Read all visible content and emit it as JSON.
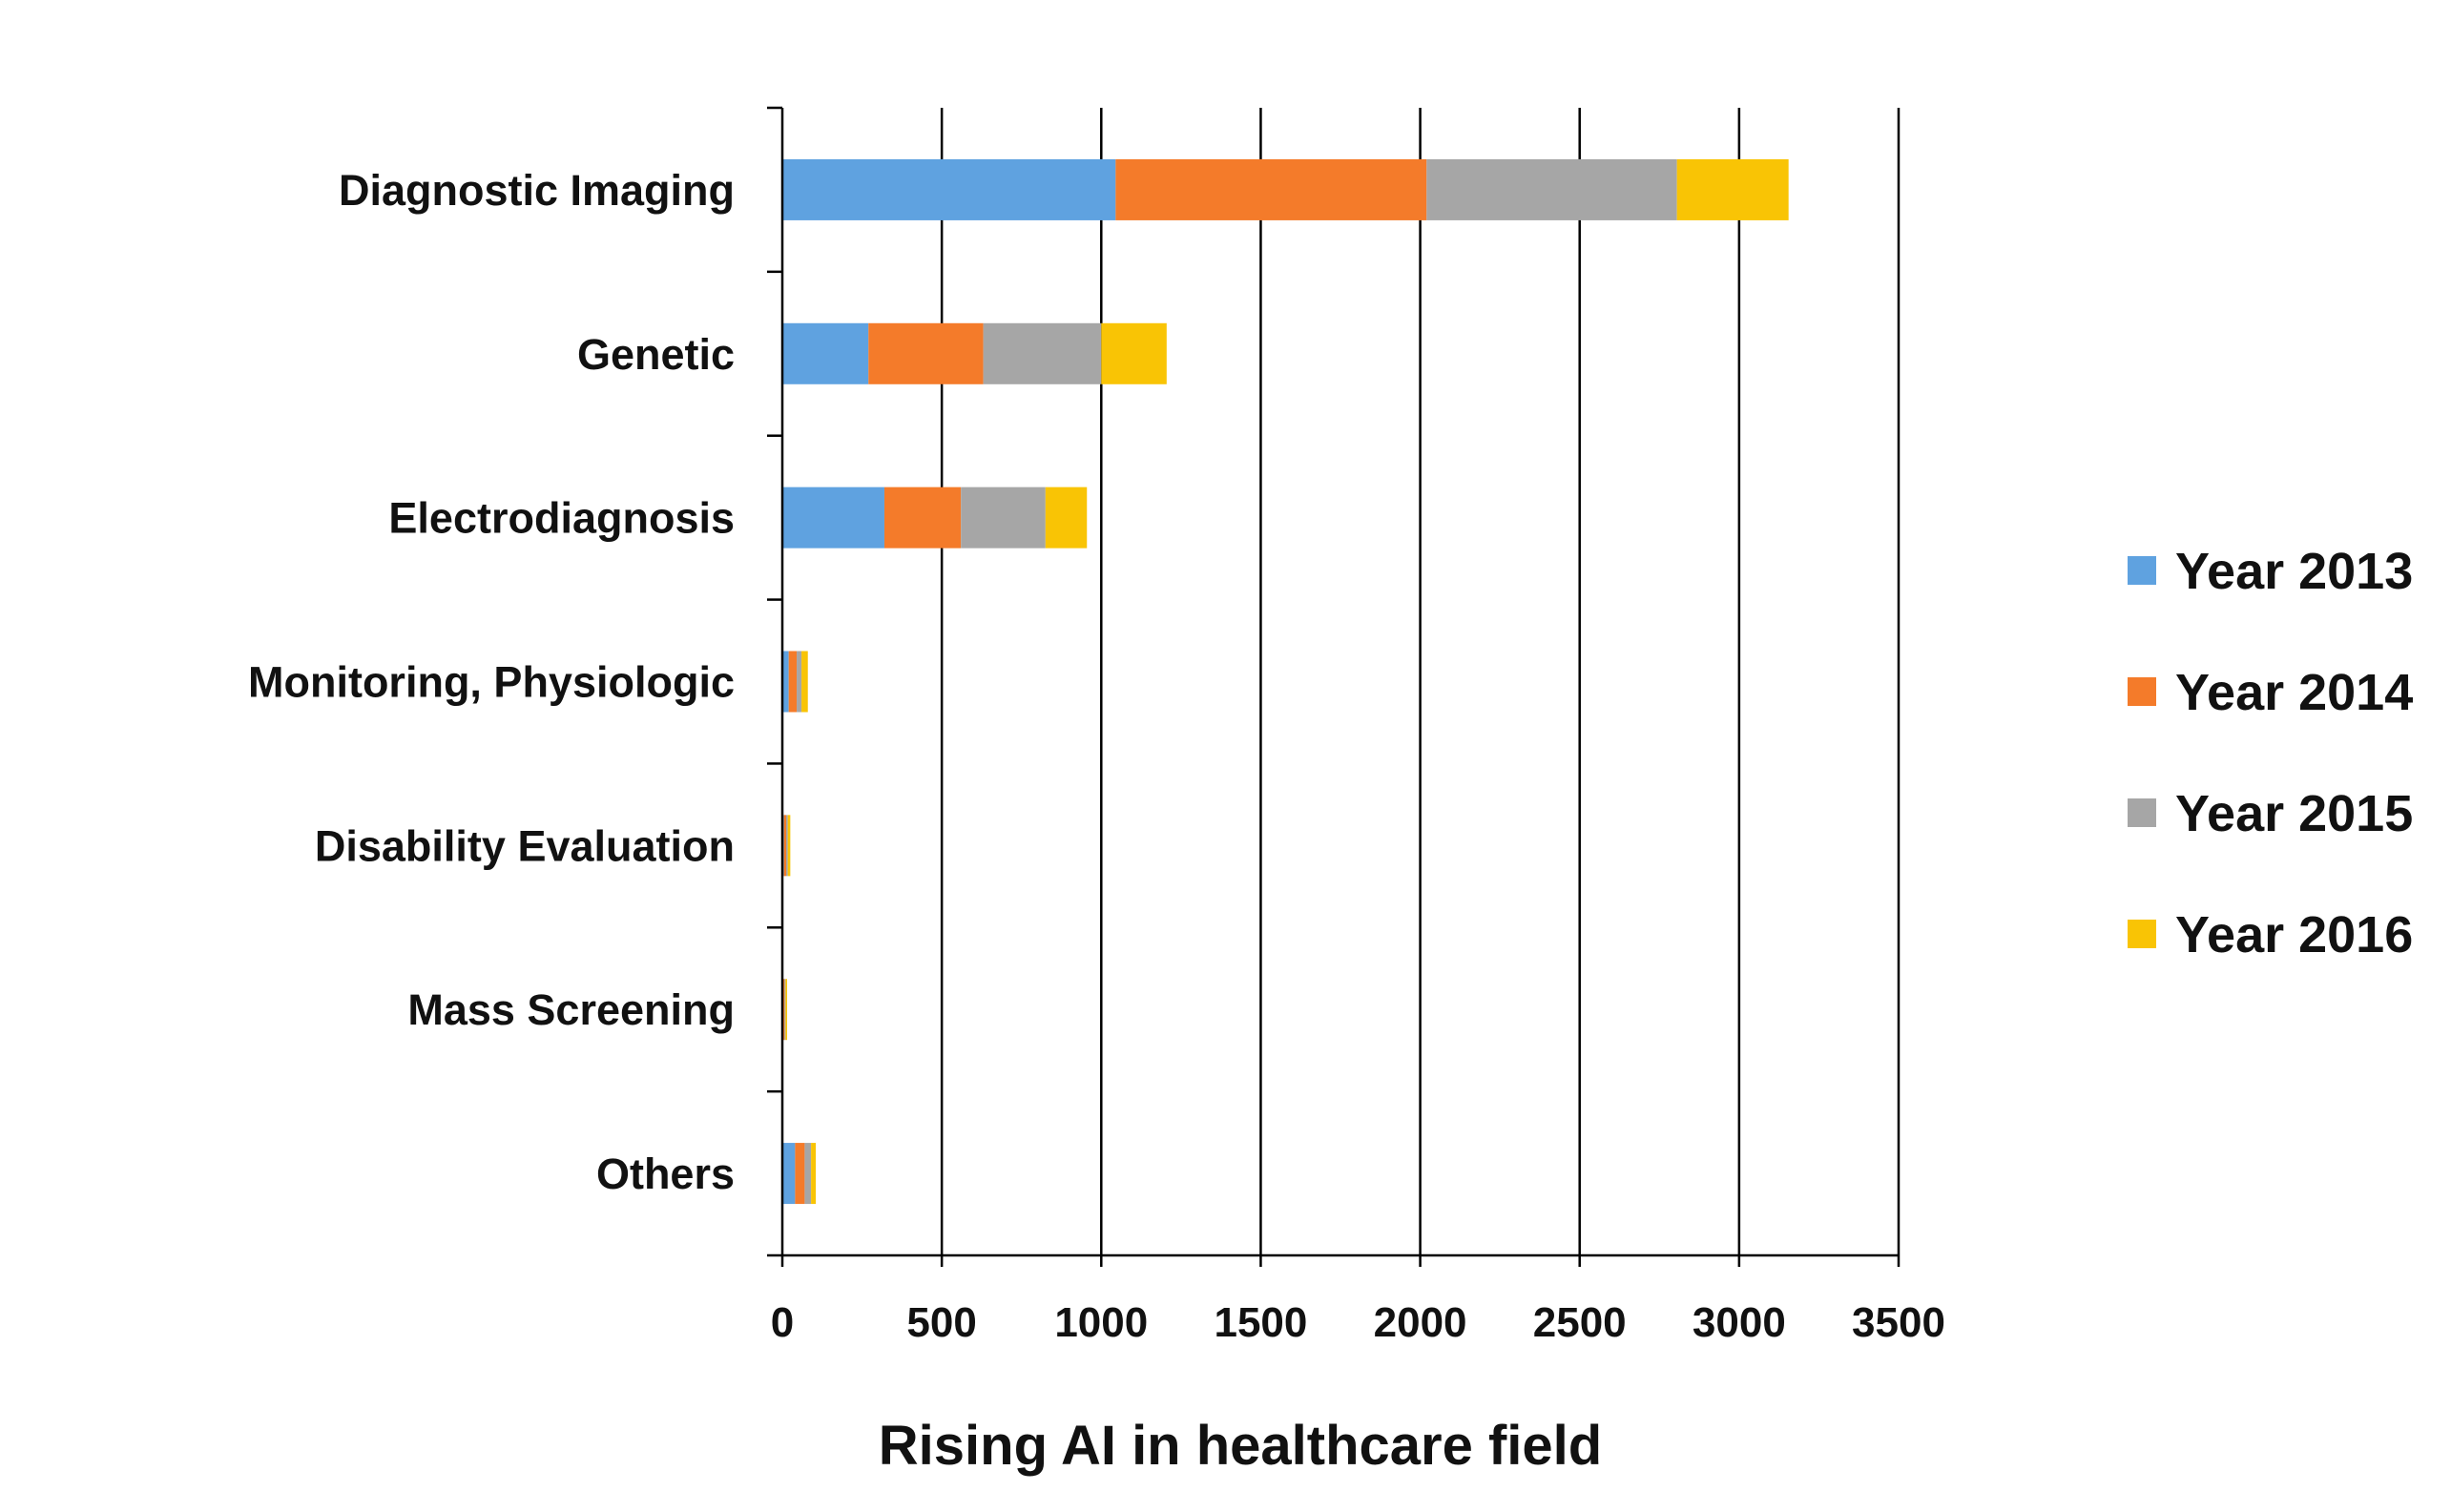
{
  "chart_data": {
    "type": "bar",
    "orientation": "horizontal",
    "stacked": true,
    "title": "",
    "xlabel": "Rising AI in healthcare field",
    "ylabel": "",
    "xlim": [
      0,
      3500
    ],
    "x_ticks": [
      0,
      500,
      1000,
      1500,
      2000,
      2500,
      3000,
      3500
    ],
    "grid": "vertical",
    "legend_position": "right",
    "categories": [
      "Diagnostic Imaging",
      "Genetic",
      "Electrodiagnosis",
      "Monitoring, Physiologic",
      "Disability Evaluation",
      "Mass Screening",
      "Others"
    ],
    "series": [
      {
        "name": "Year 2013",
        "color": "#5fa2e0",
        "values": [
          1045,
          270,
          320,
          20,
          5,
          3,
          40
        ]
      },
      {
        "name": "Year 2014",
        "color": "#f47b2a",
        "values": [
          975,
          360,
          240,
          25,
          7,
          4,
          30
        ]
      },
      {
        "name": "Year 2015",
        "color": "#a6a6a6",
        "values": [
          785,
          370,
          265,
          15,
          5,
          3,
          20
        ]
      },
      {
        "name": "Year 2016",
        "color": "#f9c405",
        "values": [
          350,
          205,
          130,
          20,
          8,
          5,
          15
        ]
      }
    ]
  }
}
